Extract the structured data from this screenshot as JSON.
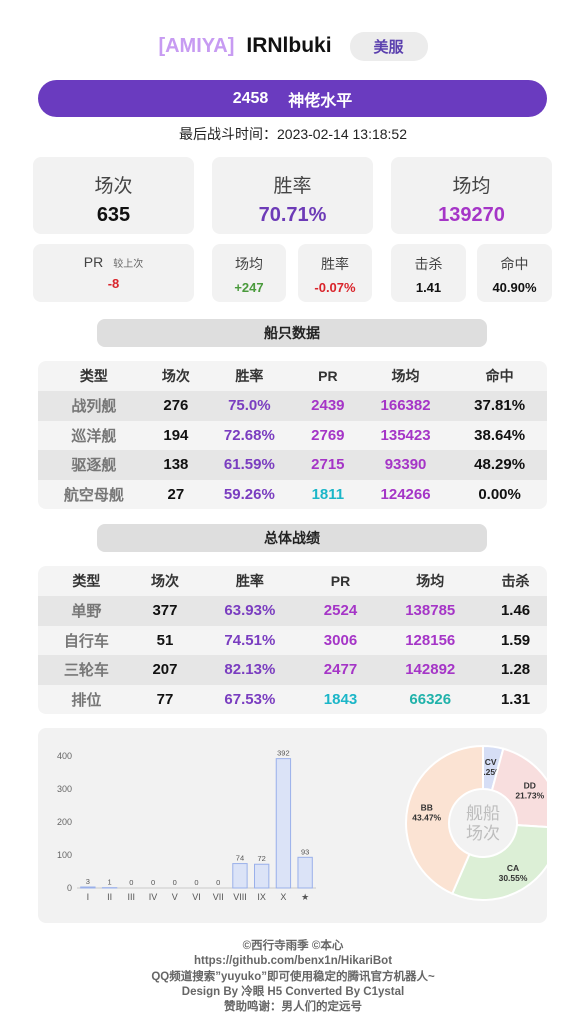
{
  "header": {
    "clan": "[AMIYA]",
    "name": "IRNlbuki",
    "server": "美服"
  },
  "banner": {
    "rating": "2458",
    "title": "神佬水平"
  },
  "last_battle": "最后战斗时间：2023-02-14 13:18:52",
  "summary": {
    "battles": {
      "label": "场次",
      "value": "635"
    },
    "winrate": {
      "label": "胜率",
      "value": "70.71%"
    },
    "avg_damage": {
      "label": "场均",
      "value": "139270"
    }
  },
  "recent": {
    "pr": {
      "label": "PR",
      "sub": "较上次",
      "value": "-8"
    },
    "avg": {
      "label": "场均",
      "value": "+247"
    },
    "winrate": {
      "label": "胜率",
      "value": "-0.07%"
    },
    "kills": {
      "label": "击杀",
      "value": "1.41"
    },
    "hit": {
      "label": "命中",
      "value": "40.90%"
    }
  },
  "ship_section_title": "船只数据",
  "ship_table": {
    "headers": [
      "类型",
      "场次",
      "胜率",
      "PR",
      "场均",
      "命中"
    ],
    "rows": [
      [
        "战列舰",
        "276",
        "75.0%",
        "2439",
        "166382",
        "37.81%"
      ],
      [
        "巡洋舰",
        "194",
        "72.68%",
        "2769",
        "135423",
        "38.64%"
      ],
      [
        "驱逐舰",
        "138",
        "61.59%",
        "2715",
        "93390",
        "48.29%"
      ],
      [
        "航空母舰",
        "27",
        "59.26%",
        "1811",
        "124266",
        "0.00%"
      ]
    ]
  },
  "overall_section_title": "总体战绩",
  "overall_table": {
    "headers": [
      "类型",
      "场次",
      "胜率",
      "PR",
      "场均",
      "击杀"
    ],
    "rows": [
      [
        "单野",
        "377",
        "63.93%",
        "2524",
        "138785",
        "1.46"
      ],
      [
        "自行车",
        "51",
        "74.51%",
        "3006",
        "128156",
        "1.59"
      ],
      [
        "三轮车",
        "207",
        "82.13%",
        "2477",
        "142892",
        "1.28"
      ],
      [
        "排位",
        "77",
        "67.53%",
        "1843",
        "66326",
        "1.31"
      ]
    ]
  },
  "colors": {
    "accent": "#6a3bbf",
    "cyan": "#1bb6c8",
    "magenta": "#a535c7"
  },
  "chart_data": [
    {
      "type": "bar",
      "categories": [
        "I",
        "II",
        "III",
        "IV",
        "V",
        "VI",
        "VII",
        "VIII",
        "IX",
        "X",
        "★"
      ],
      "values": [
        3,
        1,
        0,
        0,
        0,
        0,
        0,
        74,
        72,
        392,
        93
      ],
      "ylim": [
        0,
        400
      ],
      "yticks": [
        "0",
        "100",
        "200",
        "300",
        "400"
      ],
      "grid": false
    },
    {
      "type": "pie",
      "center_label": "舰船\n场次",
      "slices": [
        {
          "label": "CV",
          "value": 4.25,
          "pct": "4.25%",
          "color": "#d6def5"
        },
        {
          "label": "DD",
          "value": 21.73,
          "pct": "21.73%",
          "color": "#f8dede"
        },
        {
          "label": "CA",
          "value": 30.55,
          "pct": "30.55%",
          "color": "#dcefd6"
        },
        {
          "label": "BB",
          "value": 43.47,
          "pct": "43.47%",
          "color": "#fbe3d3"
        }
      ]
    }
  ],
  "footer": [
    "©西行寺雨季 ©本心",
    "https://github.com/benx1n/HikariBot",
    "QQ频道搜索”yuyuko”即可使用稳定的腾讯官方机器人~",
    "Design By 冷眼 H5 Converted By C1ystal",
    "赞助鸣谢：男人们的定远号"
  ]
}
